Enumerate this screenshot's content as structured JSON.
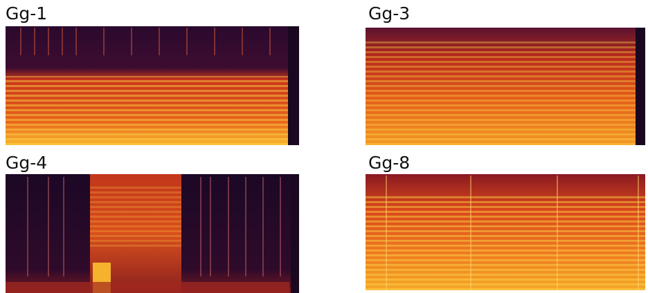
{
  "panels": [
    {
      "label": "Gg-1"
    },
    {
      "label": "Gg-3"
    },
    {
      "label": "Gg-4"
    },
    {
      "label": "Gg-8"
    }
  ]
}
